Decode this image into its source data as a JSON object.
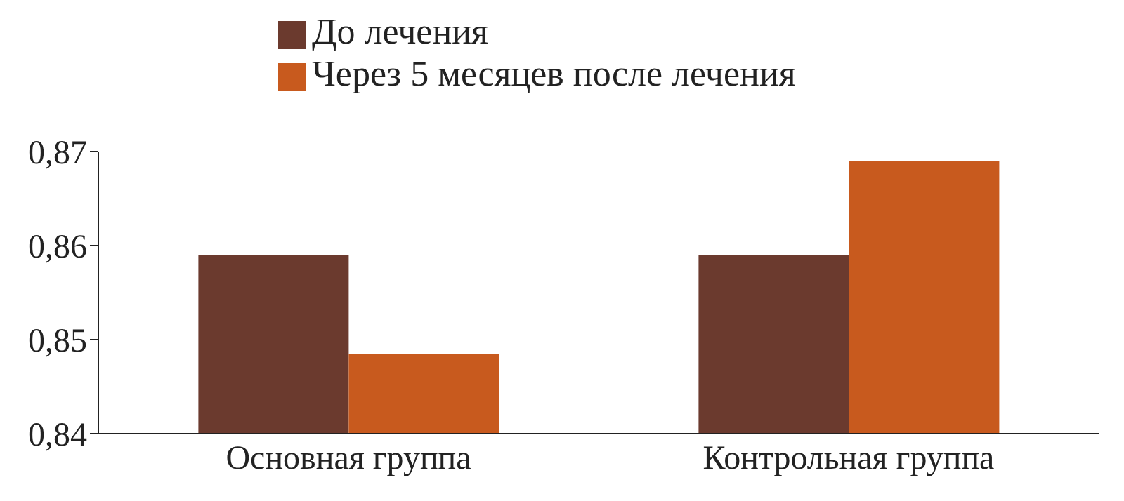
{
  "chart_data": {
    "type": "bar",
    "categories": [
      "Основная группа",
      "Контрольная группа"
    ],
    "series": [
      {
        "name": "До лечения",
        "color": "#6b3a2e",
        "values": [
          0.859,
          0.859
        ]
      },
      {
        "name": "Через 5 месяцев после лечения",
        "color": "#c85a1e",
        "values": [
          0.8485,
          0.869
        ]
      }
    ],
    "ylim": [
      0.84,
      0.87
    ],
    "yticks": [
      {
        "value": 0.84,
        "label": "0,84"
      },
      {
        "value": 0.85,
        "label": "0,85"
      },
      {
        "value": 0.86,
        "label": "0,86"
      },
      {
        "value": 0.87,
        "label": "0,87"
      }
    ],
    "grid": false,
    "legend": "top"
  }
}
